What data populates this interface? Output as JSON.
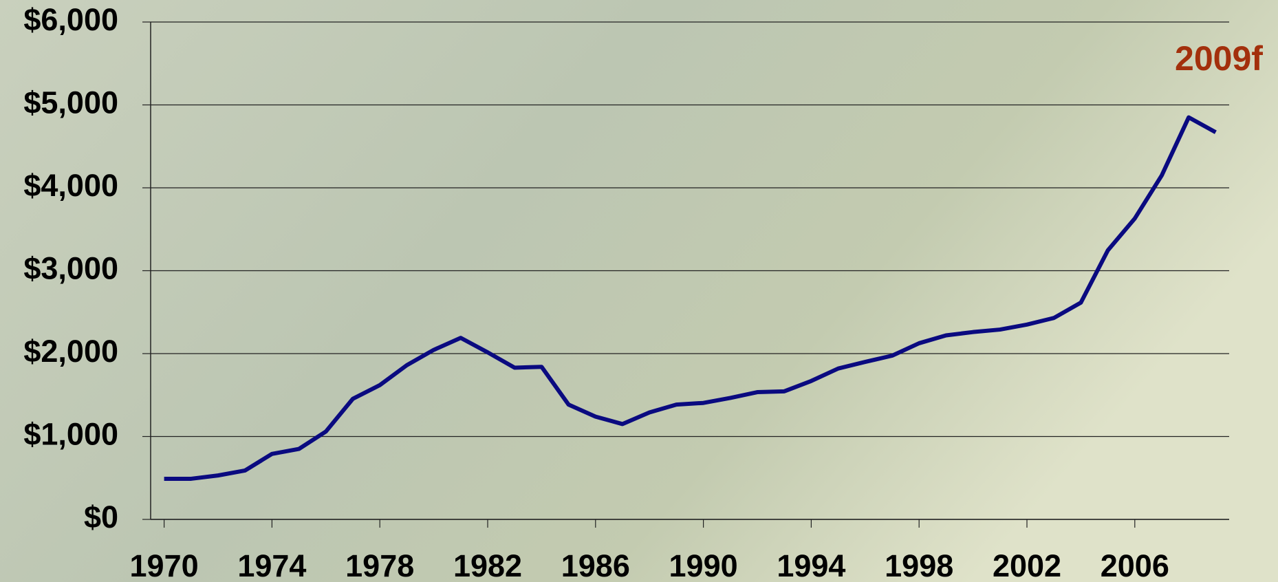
{
  "chart_data": {
    "type": "line",
    "x": [
      1970,
      1971,
      1972,
      1973,
      1974,
      1975,
      1976,
      1977,
      1978,
      1979,
      1980,
      1981,
      1982,
      1983,
      1984,
      1985,
      1986,
      1987,
      1988,
      1989,
      1990,
      1991,
      1992,
      1993,
      1994,
      1995,
      1996,
      1997,
      1998,
      1999,
      2000,
      2001,
      2002,
      2003,
      2004,
      2005,
      2006,
      2007,
      2008,
      2009
    ],
    "series": [
      {
        "color": "#0a0a80",
        "values": [
          490,
          490,
          530,
          590,
          790,
          850,
          1060,
          1455,
          1620,
          1860,
          2045,
          2190,
          2015,
          1830,
          1840,
          1385,
          1240,
          1150,
          1290,
          1385,
          1405,
          1465,
          1535,
          1545,
          1670,
          1820,
          1900,
          1975,
          2125,
          2220,
          2260,
          2290,
          2350,
          2430,
          2615,
          3245,
          3630,
          4150,
          4850,
          4670
        ]
      }
    ],
    "xlim": [
      1969.5,
      2009.5
    ],
    "xticks": [
      1970,
      1974,
      1978,
      1982,
      1986,
      1990,
      1994,
      1998,
      2002,
      2006
    ],
    "ylim": [
      0,
      6000
    ],
    "yticks": [
      {
        "value": 0,
        "label": "$0"
      },
      {
        "value": 1000,
        "label": "$1,000"
      },
      {
        "value": 2000,
        "label": "$2,000"
      },
      {
        "value": 3000,
        "label": "$3,000"
      },
      {
        "value": 4000,
        "label": "$4,000"
      },
      {
        "value": 5000,
        "label": "$5,000"
      },
      {
        "value": 6000,
        "label": "$6,000"
      }
    ],
    "grid": true,
    "annotation": "2009f"
  }
}
